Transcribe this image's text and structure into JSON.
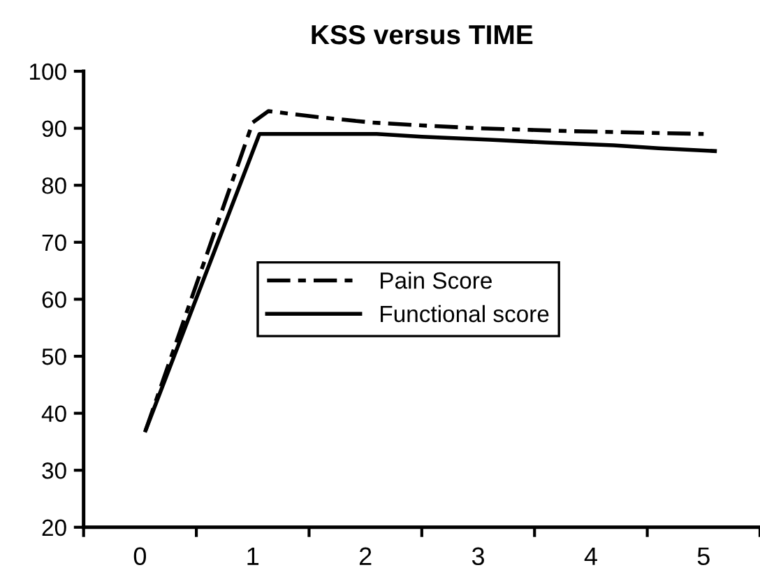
{
  "chart_data": {
    "type": "line",
    "title": "KSS versus TIME",
    "series": [
      {
        "name": "Pain Score",
        "color": "#000000",
        "line_style": "dashed",
        "x": [
          0.05,
          1.0,
          1.14,
          1.56,
          2.06,
          2.5,
          3.0,
          3.8,
          5.0
        ],
        "values": [
          37,
          91,
          93,
          92,
          91,
          90.5,
          90,
          89.5,
          89
        ]
      },
      {
        "name": "Functional score",
        "color": "#000000",
        "line_style": "solid",
        "x": [
          0.05,
          1.06,
          2.1,
          2.5,
          3.1,
          3.6,
          4.2,
          4.6,
          5.1
        ],
        "values": [
          37,
          89,
          89,
          88.5,
          88,
          87.5,
          87,
          86.5,
          86
        ]
      }
    ],
    "xlim": [
      -0.5,
      5.5
    ],
    "xticks": [
      {
        "value": -0.5,
        "label": null
      },
      0,
      {
        "value": 0.5,
        "label": null
      },
      1,
      {
        "value": 1.5,
        "label": null
      },
      2,
      {
        "value": 2.5,
        "label": null
      },
      3,
      {
        "value": 3.5,
        "label": null
      },
      4,
      {
        "value": 4.5,
        "label": null
      },
      5,
      {
        "value": 5.5,
        "label": null
      }
    ],
    "ylim": [
      20,
      100
    ],
    "yticks": [
      20,
      30,
      40,
      50,
      60,
      70,
      80,
      90,
      100
    ],
    "grid": false,
    "legend": "center right",
    "marker": "none"
  }
}
